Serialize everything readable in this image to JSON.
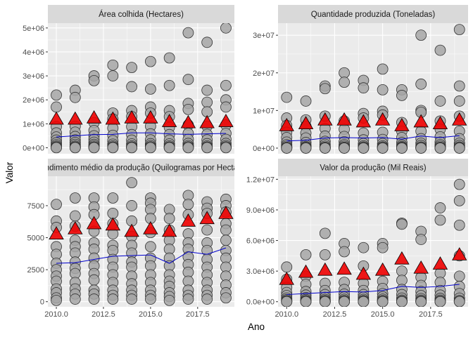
{
  "xlabel": "Ano",
  "ylabel": "Valor",
  "colors": {
    "panel_bg": "#ebebeb",
    "strip_bg": "#d9d9d9",
    "grid": "#ffffff",
    "point_fill": "#a6a6a6",
    "point_stroke": "#333333",
    "triangle_fill": "#ee0000",
    "triangle_stroke": "#000000",
    "line": "#0000cc"
  },
  "chart_data": [
    {
      "type": "scatter",
      "title": "Área colhida (Hectares)",
      "ylim": [
        -250000,
        5200000
      ],
      "xlim": [
        2009.55,
        2019.45
      ],
      "xticks": [
        2010,
        2012.5,
        2015,
        2017.5
      ],
      "xtick_labels": [
        "2010.0",
        "2012.5",
        "2015.0",
        "2017.5"
      ],
      "show_xticks": false,
      "yticks": [
        0,
        1000000,
        2000000,
        3000000,
        4000000,
        5000000
      ],
      "ytick_labels": [
        "0e+00",
        "1e+06",
        "2e+06",
        "3e+06",
        "4e+06",
        "5e+06"
      ],
      "years": [
        2010,
        2011,
        2012,
        2013,
        2014,
        2015,
        2016,
        2017,
        2018,
        2019
      ],
      "points": [
        [
          2200000,
          1700000,
          880000,
          620000,
          450000,
          320000,
          210000,
          130000,
          70000,
          30000,
          10000,
          2000
        ],
        [
          2400000,
          2100000,
          900000,
          650000,
          470000,
          330000,
          220000,
          140000,
          70000,
          30000,
          10000,
          2000
        ],
        [
          3000000,
          2800000,
          1050000,
          720000,
          500000,
          350000,
          230000,
          140000,
          80000,
          30000,
          10000,
          2000
        ],
        [
          3450000,
          3000000,
          1450000,
          1200000,
          820000,
          520000,
          300000,
          150000,
          80000,
          30000,
          10000,
          2000
        ],
        [
          3350000,
          2550000,
          1550000,
          1300000,
          880000,
          550000,
          320000,
          160000,
          80000,
          30000,
          10000,
          2000
        ],
        [
          3600000,
          2450000,
          1700000,
          1450000,
          900000,
          580000,
          330000,
          170000,
          90000,
          40000,
          10000,
          2000
        ],
        [
          3750000,
          2600000,
          1550000,
          1300000,
          850000,
          550000,
          320000,
          160000,
          80000,
          30000,
          10000,
          2000
        ],
        [
          4800000,
          2850000,
          1850000,
          1600000,
          950000,
          600000,
          350000,
          180000,
          90000,
          40000,
          10000,
          2000
        ],
        [
          4400000,
          2400000,
          1900000,
          1500000,
          900000,
          560000,
          330000,
          170000,
          80000,
          30000,
          10000,
          2000
        ],
        [
          5000000,
          2600000,
          2000000,
          1700000,
          950000,
          600000,
          350000,
          180000,
          90000,
          40000,
          10000,
          2000
        ]
      ],
      "triangles": [
        1200000,
        1200000,
        1250000,
        1200000,
        1250000,
        1250000,
        1100000,
        1050000,
        1050000,
        1100000
      ],
      "line": [
        450000,
        500000,
        550000,
        560000,
        620000,
        620000,
        580000,
        560000,
        580000,
        600000
      ]
    },
    {
      "type": "scatter",
      "title": "Quantidade produzida (Toneladas)",
      "ylim": [
        -1500000,
        33200000
      ],
      "xlim": [
        2009.55,
        2019.45
      ],
      "xticks": [
        2010,
        2012.5,
        2015,
        2017.5
      ],
      "xtick_labels": [
        "2010.0",
        "2012.5",
        "2015.0",
        "2017.5"
      ],
      "show_xticks": false,
      "yticks": [
        0,
        10000000,
        20000000,
        30000000
      ],
      "ytick_labels": [
        "0e+00",
        "1e+07",
        "2e+07",
        "3e+07"
      ],
      "years": [
        2010,
        2011,
        2012,
        2013,
        2014,
        2015,
        2016,
        2017,
        2018,
        2019
      ],
      "points": [
        [
          13500000,
          8000000,
          6000000,
          4200000,
          2800000,
          1600000,
          900000,
          500000,
          200000,
          80000,
          20000,
          5000
        ],
        [
          12500000,
          7500000,
          5800000,
          4000000,
          2700000,
          1500000,
          800000,
          400000,
          200000,
          80000,
          20000,
          5000
        ],
        [
          16500000,
          15800000,
          8500000,
          5200000,
          3200000,
          1800000,
          1000000,
          500000,
          200000,
          80000,
          20000,
          5000
        ],
        [
          20000000,
          17500000,
          7200000,
          5000000,
          3100000,
          1700000,
          900000,
          500000,
          200000,
          80000,
          20000,
          5000
        ],
        [
          18000000,
          16000000,
          9200000,
          8000000,
          4000000,
          2200000,
          1200000,
          600000,
          300000,
          100000,
          20000,
          5000
        ],
        [
          21000000,
          15500000,
          9800000,
          8800000,
          4200000,
          2300000,
          1200000,
          600000,
          300000,
          100000,
          20000,
          5000
        ],
        [
          15500000,
          14000000,
          6800000,
          4500000,
          2800000,
          1500000,
          800000,
          400000,
          200000,
          80000,
          20000,
          5000
        ],
        [
          30000000,
          17000000,
          10000000,
          9500000,
          4500000,
          2500000,
          1300000,
          700000,
          300000,
          100000,
          20000,
          5000
        ],
        [
          26000000,
          12500000,
          7200000,
          5000000,
          3000000,
          1600000,
          900000,
          500000,
          200000,
          80000,
          20000,
          5000
        ],
        [
          31500000,
          16500000,
          12500000,
          8500000,
          4500000,
          2500000,
          1300000,
          700000,
          300000,
          100000,
          20000,
          5000
        ]
      ],
      "triangles": [
        6000000,
        6500000,
        7500000,
        7500000,
        7000000,
        7500000,
        6000000,
        7000000,
        6500000,
        7500000
      ],
      "line": [
        1900000,
        2100000,
        2700000,
        2800000,
        2700000,
        2800000,
        2400000,
        3200000,
        2800000,
        3300000
      ]
    },
    {
      "type": "scatter",
      "title": "Rendimento médio da produção (Quilogramas por Hectare)",
      "ylim": [
        -400,
        9800
      ],
      "xlim": [
        2009.55,
        2019.45
      ],
      "xticks": [
        2010,
        2012.5,
        2015,
        2017.5
      ],
      "xtick_labels": [
        "2010.0",
        "2012.5",
        "2015.0",
        "2017.5"
      ],
      "show_xticks": true,
      "yticks": [
        0,
        2500,
        5000,
        7500
      ],
      "ytick_labels": [
        "0",
        "2500",
        "5000",
        "7500"
      ],
      "years": [
        2010,
        2011,
        2012,
        2013,
        2014,
        2015,
        2016,
        2017,
        2018,
        2019
      ],
      "points": [
        [
          7600,
          6300,
          5800,
          4300,
          3700,
          3000,
          2500,
          2000,
          1600,
          1000,
          700,
          300,
          100
        ],
        [
          8100,
          6700,
          5900,
          4800,
          4300,
          3800,
          3100,
          2600,
          2200,
          1500,
          1000,
          600,
          200
        ],
        [
          8100,
          7400,
          6800,
          5500,
          4600,
          4100,
          3400,
          2800,
          2200,
          1700,
          900,
          600,
          200
        ],
        [
          8100,
          6900,
          6100,
          5300,
          4400,
          4000,
          3300,
          2700,
          2100,
          1500,
          900,
          500,
          200
        ],
        [
          9300,
          7500,
          6300,
          5100,
          4400,
          3800,
          3100,
          2700,
          2000,
          1400,
          900,
          500,
          200
        ],
        [
          8100,
          7700,
          7200,
          6500,
          5400,
          4300,
          3400,
          2800,
          2100,
          1500,
          900,
          500,
          200
        ],
        [
          7200,
          6500,
          5600,
          4800,
          4100,
          3400,
          2800,
          2100,
          1600,
          1200,
          700,
          400,
          100
        ],
        [
          8300,
          7600,
          6800,
          5300,
          4600,
          4100,
          3500,
          2900,
          2300,
          1600,
          900,
          500,
          200
        ],
        [
          7800,
          7300,
          6900,
          5600,
          4600,
          4000,
          3300,
          2700,
          2100,
          1500,
          900,
          500,
          200
        ],
        [
          8000,
          7500,
          7000,
          6100,
          5600,
          4800,
          4000,
          3400,
          2700,
          2000,
          1300,
          700,
          300
        ]
      ],
      "triangles": [
        5300,
        5700,
        6100,
        6000,
        5500,
        5700,
        5500,
        6300,
        6500,
        6900
      ],
      "line": [
        3000,
        3050,
        3300,
        3550,
        3600,
        3650,
        3000,
        3900,
        3700,
        4200
      ]
    },
    {
      "type": "scatter",
      "title": "Valor da produção (Mil Reais)",
      "ylim": [
        -500000,
        12300000
      ],
      "xlim": [
        2009.55,
        2019.45
      ],
      "xticks": [
        2010,
        2012.5,
        2015,
        2017.5
      ],
      "xtick_labels": [
        "2010.0",
        "2012.5",
        "2015.0",
        "2017.5"
      ],
      "show_xticks": true,
      "yticks": [
        0,
        3000000,
        6000000,
        9000000,
        12000000
      ],
      "ytick_labels": [
        "0.0e+00",
        "3.0e+06",
        "6.0e+06",
        "9.0e+06",
        "1.2e+07"
      ],
      "years": [
        2010,
        2011,
        2012,
        2013,
        2014,
        2015,
        2016,
        2017,
        2018,
        2019
      ],
      "points": [
        [
          3400000,
          2200000,
          1400000,
          900000,
          600000,
          350000,
          200000,
          100000,
          40000,
          10000,
          2000
        ],
        [
          4600000,
          2500000,
          1700000,
          1000000,
          650000,
          400000,
          220000,
          110000,
          40000,
          10000,
          2000
        ],
        [
          6700000,
          4600000,
          1800000,
          1100000,
          700000,
          420000,
          230000,
          120000,
          40000,
          10000,
          2000
        ],
        [
          5700000,
          4900000,
          1900000,
          1200000,
          750000,
          450000,
          240000,
          120000,
          40000,
          10000,
          2000
        ],
        [
          5300000,
          3500000,
          1800000,
          1100000,
          700000,
          430000,
          230000,
          110000,
          40000,
          10000,
          2000
        ],
        [
          5700000,
          5300000,
          2000000,
          1300000,
          800000,
          480000,
          250000,
          120000,
          40000,
          10000,
          2000
        ],
        [
          7700000,
          7600000,
          3000000,
          2100000,
          1200000,
          700000,
          350000,
          150000,
          50000,
          10000,
          2000
        ],
        [
          6900000,
          6100000,
          2400000,
          1600000,
          1000000,
          600000,
          300000,
          140000,
          50000,
          10000,
          2000
        ],
        [
          9200000,
          8000000,
          2800000,
          1900000,
          1100000,
          650000,
          320000,
          150000,
          50000,
          10000,
          2000
        ],
        [
          11500000,
          9900000,
          7500000,
          4500000,
          2500000,
          1500000,
          800000,
          350000,
          120000,
          30000,
          5000
        ]
      ],
      "triangles": [
        2200000,
        2900000,
        3100000,
        3200000,
        2700000,
        3100000,
        4200000,
        3300000,
        3700000,
        4600000
      ],
      "line": [
        700000,
        800000,
        900000,
        1000000,
        950000,
        1100000,
        1500000,
        1400000,
        1500000,
        1700000
      ]
    }
  ]
}
